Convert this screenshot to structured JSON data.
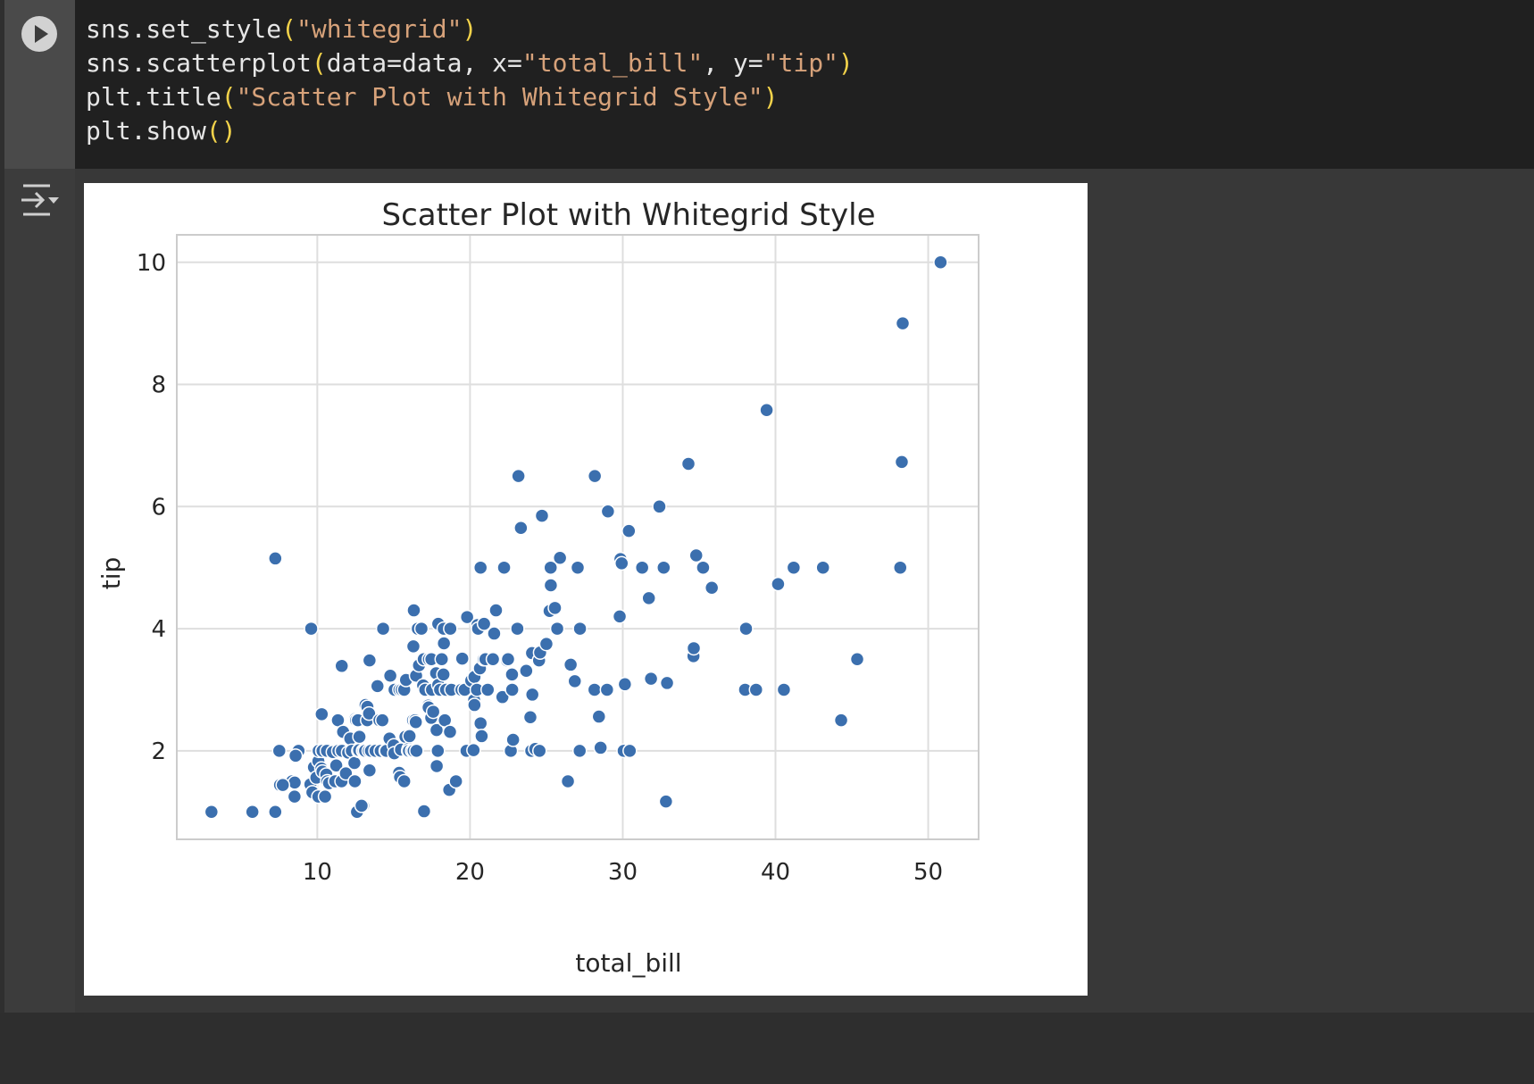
{
  "code_cell": {
    "lines": [
      [
        {
          "t": "sns.set_style",
          "c": ""
        },
        {
          "t": "(",
          "c": "par"
        },
        {
          "t": "\"whitegrid\"",
          "c": "str"
        },
        {
          "t": ")",
          "c": "par"
        }
      ],
      [
        {
          "t": "sns.scatterplot",
          "c": ""
        },
        {
          "t": "(",
          "c": "par"
        },
        {
          "t": "data=data, x=",
          "c": ""
        },
        {
          "t": "\"total_bill\"",
          "c": "str"
        },
        {
          "t": ", y=",
          "c": ""
        },
        {
          "t": "\"tip\"",
          "c": "str"
        },
        {
          "t": ")",
          "c": "par"
        }
      ],
      [
        {
          "t": "plt.title",
          "c": ""
        },
        {
          "t": "(",
          "c": "par"
        },
        {
          "t": "\"Scatter Plot with Whitegrid Style\"",
          "c": "str"
        },
        {
          "t": ")",
          "c": "par"
        }
      ],
      [
        {
          "t": "plt.show",
          "c": ""
        },
        {
          "t": "()",
          "c": "par"
        }
      ]
    ],
    "run_icon": "play-icon",
    "output_icon": "output-collapse-icon"
  },
  "colors": {
    "point": "#3b6fae",
    "grid": "#dedede",
    "string": "#d7a27a",
    "paren": "#f2d24a"
  },
  "chart_data": {
    "type": "scatter",
    "title": "Scatter Plot with Whitegrid Style",
    "xlabel": "total_bill",
    "ylabel": "tip",
    "xlim": [
      0.8,
      53.3
    ],
    "ylim": [
      0.55,
      10.45
    ],
    "xticks": [
      10,
      20,
      30,
      40,
      50
    ],
    "yticks": [
      2,
      4,
      6,
      8,
      10
    ],
    "grid": true,
    "points": [
      [
        3.07,
        1.0
      ],
      [
        5.75,
        1.0
      ],
      [
        7.25,
        1.0
      ],
      [
        12.6,
        1.0
      ],
      [
        13.0,
        1.1
      ],
      [
        7.25,
        5.15
      ],
      [
        9.6,
        4.0
      ],
      [
        11.6,
        3.39
      ],
      [
        7.51,
        2.0
      ],
      [
        8.35,
        1.5
      ],
      [
        8.52,
        1.48
      ],
      [
        8.77,
        2.0
      ],
      [
        7.56,
        1.44
      ],
      [
        8.51,
        1.25
      ],
      [
        7.74,
        1.44
      ],
      [
        8.58,
        1.92
      ],
      [
        9.55,
        1.45
      ],
      [
        9.68,
        1.32
      ],
      [
        9.78,
        1.73
      ],
      [
        9.94,
        1.56
      ],
      [
        10.07,
        1.25
      ],
      [
        10.07,
        1.83
      ],
      [
        10.09,
        2.0
      ],
      [
        10.27,
        1.71
      ],
      [
        10.29,
        2.6
      ],
      [
        10.33,
        2.0
      ],
      [
        10.34,
        1.66
      ],
      [
        10.34,
        2.0
      ],
      [
        10.51,
        1.25
      ],
      [
        10.59,
        1.61
      ],
      [
        10.63,
        2.0
      ],
      [
        10.65,
        1.5
      ],
      [
        10.77,
        1.47
      ],
      [
        11.02,
        1.98
      ],
      [
        11.17,
        1.5
      ],
      [
        11.24,
        1.76
      ],
      [
        11.35,
        2.5
      ],
      [
        11.38,
        2.0
      ],
      [
        11.59,
        1.5
      ],
      [
        11.61,
        2.0
      ],
      [
        11.69,
        2.31
      ],
      [
        11.87,
        1.63
      ],
      [
        12.02,
        1.97
      ],
      [
        12.16,
        2.2
      ],
      [
        12.26,
        2.0
      ],
      [
        12.43,
        1.8
      ],
      [
        12.46,
        1.5
      ],
      [
        12.48,
        2.52
      ],
      [
        12.54,
        2.5
      ],
      [
        12.66,
        2.5
      ],
      [
        12.69,
        2.0
      ],
      [
        12.74,
        2.01
      ],
      [
        12.76,
        2.23
      ],
      [
        12.9,
        1.1
      ],
      [
        13.0,
        2.0
      ],
      [
        13.03,
        2.0
      ],
      [
        13.13,
        2.0
      ],
      [
        13.16,
        2.75
      ],
      [
        13.27,
        2.5
      ],
      [
        13.28,
        2.72
      ],
      [
        13.37,
        2.0
      ],
      [
        13.39,
        2.61
      ],
      [
        13.42,
        1.68
      ],
      [
        13.42,
        3.48
      ],
      [
        13.51,
        2.0
      ],
      [
        13.81,
        2.0
      ],
      [
        13.94,
        3.06
      ],
      [
        14.07,
        2.5
      ],
      [
        14.15,
        2.0
      ],
      [
        14.26,
        2.5
      ],
      [
        14.31,
        4.0
      ],
      [
        14.48,
        2.0
      ],
      [
        14.52,
        2.0
      ],
      [
        14.73,
        2.2
      ],
      [
        14.78,
        3.23
      ],
      [
        15.01,
        2.09
      ],
      [
        15.04,
        1.96
      ],
      [
        15.06,
        3.0
      ],
      [
        15.36,
        1.64
      ],
      [
        15.38,
        3.0
      ],
      [
        15.42,
        1.57
      ],
      [
        15.48,
        2.02
      ],
      [
        15.53,
        3.0
      ],
      [
        15.69,
        1.5
      ],
      [
        15.69,
        3.0
      ],
      [
        15.77,
        2.23
      ],
      [
        15.81,
        3.16
      ],
      [
        15.95,
        2.0
      ],
      [
        15.98,
        2.03
      ],
      [
        16.0,
        2.0
      ],
      [
        16.04,
        2.24
      ],
      [
        16.21,
        2.0
      ],
      [
        16.27,
        2.5
      ],
      [
        16.29,
        3.71
      ],
      [
        16.31,
        2.0
      ],
      [
        16.32,
        4.3
      ],
      [
        16.4,
        2.5
      ],
      [
        16.45,
        2.47
      ],
      [
        16.47,
        3.23
      ],
      [
        16.49,
        2.0
      ],
      [
        16.58,
        4.0
      ],
      [
        16.66,
        3.4
      ],
      [
        16.82,
        4.0
      ],
      [
        16.93,
        3.07
      ],
      [
        16.97,
        3.5
      ],
      [
        16.99,
        1.01
      ],
      [
        17.07,
        3.0
      ],
      [
        17.26,
        2.74
      ],
      [
        17.29,
        2.71
      ],
      [
        17.31,
        3.5
      ],
      [
        17.46,
        2.54
      ],
      [
        17.47,
        3.5
      ],
      [
        17.51,
        3.0
      ],
      [
        17.59,
        2.64
      ],
      [
        17.78,
        3.27
      ],
      [
        17.81,
        2.34
      ],
      [
        17.82,
        1.75
      ],
      [
        17.89,
        2.0
      ],
      [
        17.92,
        3.08
      ],
      [
        17.92,
        4.08
      ],
      [
        18.04,
        3.0
      ],
      [
        18.15,
        3.5
      ],
      [
        18.24,
        3.76
      ],
      [
        18.26,
        3.25
      ],
      [
        18.28,
        4.0
      ],
      [
        18.29,
        3.76
      ],
      [
        18.35,
        2.5
      ],
      [
        18.43,
        3.0
      ],
      [
        18.64,
        1.36
      ],
      [
        18.69,
        2.31
      ],
      [
        18.71,
        4.0
      ],
      [
        18.78,
        3.0
      ],
      [
        19.08,
        1.5
      ],
      [
        19.44,
        3.0
      ],
      [
        19.49,
        3.51
      ],
      [
        19.65,
        3.0
      ],
      [
        19.77,
        2.0
      ],
      [
        19.81,
        4.19
      ],
      [
        20.08,
        3.15
      ],
      [
        20.23,
        2.01
      ],
      [
        20.27,
        2.83
      ],
      [
        20.29,
        2.75
      ],
      [
        20.29,
        3.21
      ],
      [
        20.45,
        3.0
      ],
      [
        20.49,
        4.06
      ],
      [
        20.53,
        4.0
      ],
      [
        20.65,
        3.35
      ],
      [
        20.69,
        2.45
      ],
      [
        20.69,
        5.0
      ],
      [
        20.76,
        2.24
      ],
      [
        20.9,
        3.5
      ],
      [
        20.92,
        4.08
      ],
      [
        21.01,
        3.5
      ],
      [
        21.16,
        3.0
      ],
      [
        21.5,
        3.5
      ],
      [
        21.58,
        3.92
      ],
      [
        21.7,
        4.3
      ],
      [
        22.12,
        2.88
      ],
      [
        22.23,
        5.0
      ],
      [
        22.42,
        3.48
      ],
      [
        22.49,
        3.5
      ],
      [
        22.67,
        2.0
      ],
      [
        22.75,
        3.25
      ],
      [
        22.76,
        3.0
      ],
      [
        22.82,
        2.18
      ],
      [
        23.1,
        4.0
      ],
      [
        23.17,
        6.5
      ],
      [
        23.33,
        5.65
      ],
      [
        23.68,
        3.31
      ],
      [
        23.95,
        2.55
      ],
      [
        24.01,
        2.0
      ],
      [
        24.06,
        3.6
      ],
      [
        24.08,
        2.92
      ],
      [
        24.27,
        2.03
      ],
      [
        24.52,
        3.48
      ],
      [
        24.55,
        2.0
      ],
      [
        24.59,
        3.61
      ],
      [
        24.71,
        5.85
      ],
      [
        25.0,
        3.75
      ],
      [
        25.21,
        4.29
      ],
      [
        25.28,
        5.0
      ],
      [
        25.29,
        4.71
      ],
      [
        25.56,
        4.34
      ],
      [
        25.71,
        4.0
      ],
      [
        25.89,
        5.16
      ],
      [
        26.41,
        1.5
      ],
      [
        26.59,
        3.41
      ],
      [
        26.86,
        3.14
      ],
      [
        27.05,
        5.0
      ],
      [
        27.18,
        2.0
      ],
      [
        27.2,
        4.0
      ],
      [
        28.15,
        3.0
      ],
      [
        28.17,
        6.5
      ],
      [
        28.44,
        2.56
      ],
      [
        28.55,
        2.05
      ],
      [
        28.97,
        3.0
      ],
      [
        29.03,
        5.92
      ],
      [
        29.8,
        4.2
      ],
      [
        29.85,
        5.14
      ],
      [
        29.93,
        5.07
      ],
      [
        30.06,
        2.0
      ],
      [
        30.14,
        3.09
      ],
      [
        30.4,
        5.6
      ],
      [
        30.46,
        2.0
      ],
      [
        31.27,
        5.0
      ],
      [
        31.71,
        4.5
      ],
      [
        31.85,
        3.18
      ],
      [
        32.4,
        6.0
      ],
      [
        32.68,
        5.0
      ],
      [
        32.83,
        1.17
      ],
      [
        32.9,
        3.11
      ],
      [
        34.3,
        6.7
      ],
      [
        34.63,
        3.55
      ],
      [
        34.65,
        3.68
      ],
      [
        34.81,
        5.2
      ],
      [
        35.26,
        5.0
      ],
      [
        35.83,
        4.67
      ],
      [
        38.01,
        3.0
      ],
      [
        38.07,
        4.0
      ],
      [
        38.73,
        3.0
      ],
      [
        39.42,
        7.58
      ],
      [
        40.17,
        4.73
      ],
      [
        40.55,
        3.0
      ],
      [
        41.19,
        5.0
      ],
      [
        43.11,
        5.0
      ],
      [
        44.3,
        2.5
      ],
      [
        45.35,
        3.5
      ],
      [
        48.17,
        5.0
      ],
      [
        48.27,
        6.73
      ],
      [
        48.33,
        9.0
      ],
      [
        50.81,
        10.0
      ]
    ]
  }
}
